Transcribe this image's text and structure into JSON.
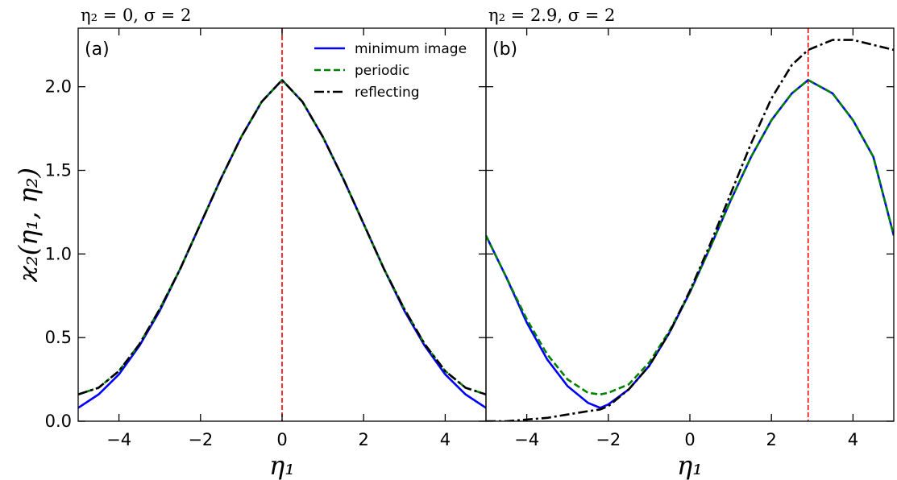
{
  "chart_data": [
    {
      "type": "line",
      "panel_label": "(a)",
      "title": "η₂ = 0,  σ = 2",
      "xlabel": "η₁",
      "ylabel": "ϰ₂(η₁, η₂)",
      "xlim": [
        -5.0,
        5.0
      ],
      "ylim": [
        0.0,
        2.35
      ],
      "xticks": [
        -4,
        -2,
        0,
        2,
        4
      ],
      "xtick_labels": [
        "−4",
        "−2",
        "0",
        "2",
        "4"
      ],
      "yticks": [
        0.0,
        0.5,
        1.0,
        1.5,
        2.0
      ],
      "ytick_labels": [
        "0.0",
        "0.5",
        "1.0",
        "1.5",
        "2.0"
      ],
      "vline": {
        "x": 0.0,
        "color": "#ff0000",
        "style": "dashed"
      },
      "legend_position": "top-right",
      "x": [
        -5,
        -4.5,
        -4,
        -3.5,
        -3,
        -2.5,
        -2,
        -1.5,
        -1,
        -0.5,
        0,
        0.5,
        1,
        1.5,
        2,
        2.5,
        3,
        3.5,
        4,
        4.5,
        5
      ],
      "series": [
        {
          "name": "minimum image",
          "color": "#0000ff",
          "style": "solid",
          "values": [
            0.08,
            0.16,
            0.28,
            0.45,
            0.66,
            0.91,
            1.18,
            1.45,
            1.7,
            1.91,
            2.04,
            1.91,
            1.7,
            1.45,
            1.18,
            0.91,
            0.66,
            0.45,
            0.28,
            0.16,
            0.08
          ]
        },
        {
          "name": "periodic",
          "color": "#008000",
          "style": "dashed",
          "values": [
            0.16,
            0.2,
            0.3,
            0.46,
            0.67,
            0.91,
            1.18,
            1.45,
            1.7,
            1.91,
            2.04,
            1.91,
            1.7,
            1.45,
            1.18,
            0.91,
            0.67,
            0.46,
            0.3,
            0.2,
            0.16
          ]
        },
        {
          "name": "reflecting",
          "color": "#000000",
          "style": "dashdot",
          "values": [
            0.16,
            0.2,
            0.3,
            0.46,
            0.67,
            0.91,
            1.18,
            1.45,
            1.7,
            1.91,
            2.04,
            1.91,
            1.7,
            1.45,
            1.18,
            0.91,
            0.67,
            0.46,
            0.3,
            0.2,
            0.16
          ]
        }
      ]
    },
    {
      "type": "line",
      "panel_label": "(b)",
      "title": "η₂ = 2.9,  σ = 2",
      "xlabel": "η₁",
      "ylabel": "",
      "xlim": [
        -5.0,
        5.0
      ],
      "ylim": [
        0.0,
        2.35
      ],
      "xticks": [
        -4,
        -2,
        0,
        2,
        4
      ],
      "xtick_labels": [
        "−4",
        "−2",
        "0",
        "2",
        "4"
      ],
      "yticks": [
        0.0,
        0.5,
        1.0,
        1.5,
        2.0
      ],
      "ytick_labels": [
        "",
        "",
        "",
        "",
        ""
      ],
      "vline": {
        "x": 2.9,
        "color": "#ff0000",
        "style": "dashed"
      },
      "x": [
        -5,
        -4.5,
        -4,
        -3.5,
        -3,
        -2.5,
        -2.2,
        -2,
        -1.5,
        -1,
        -0.5,
        0,
        0.5,
        1,
        1.5,
        2,
        2.5,
        2.9,
        3.5,
        4,
        4.5,
        5
      ],
      "series": [
        {
          "name": "minimum image",
          "color": "#0000ff",
          "style": "solid",
          "values": [
            1.11,
            0.86,
            0.59,
            0.37,
            0.21,
            0.11,
            0.08,
            0.1,
            0.19,
            0.33,
            0.53,
            0.77,
            1.04,
            1.32,
            1.58,
            1.8,
            1.96,
            2.04,
            1.96,
            1.8,
            1.58,
            1.11
          ]
        },
        {
          "name": "periodic",
          "color": "#008000",
          "style": "dashed",
          "values": [
            1.11,
            0.86,
            0.61,
            0.4,
            0.25,
            0.17,
            0.16,
            0.17,
            0.22,
            0.35,
            0.54,
            0.77,
            1.04,
            1.32,
            1.58,
            1.8,
            1.96,
            2.04,
            1.96,
            1.8,
            1.58,
            1.11
          ]
        },
        {
          "name": "reflecting",
          "color": "#000000",
          "style": "dashdot",
          "values": [
            0.0,
            0.0,
            0.01,
            0.02,
            0.04,
            0.06,
            0.07,
            0.09,
            0.19,
            0.33,
            0.53,
            0.78,
            1.06,
            1.36,
            1.66,
            1.93,
            2.13,
            2.22,
            2.28,
            2.28,
            2.25,
            2.22
          ]
        }
      ]
    }
  ]
}
